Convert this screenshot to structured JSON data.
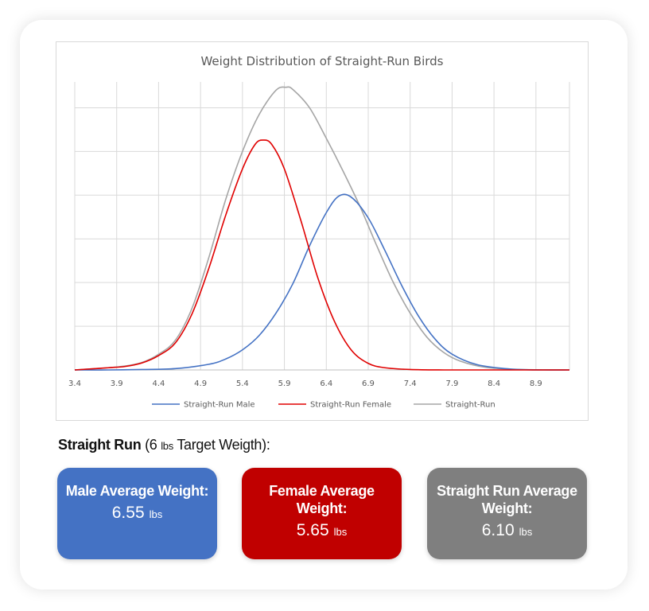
{
  "chart_data": {
    "type": "line",
    "title": "Weight Distribution of Straight-Run Birds",
    "xlabel": "",
    "ylabel": "",
    "xlim": [
      3.4,
      9.3
    ],
    "ylim": [
      0,
      6.5
    ],
    "x_ticks": [
      "3.4",
      "3.9",
      "4.4",
      "4.9",
      "5.4",
      "5.9",
      "6.4",
      "6.9",
      "7.4",
      "7.9",
      "8.4",
      "8.9"
    ],
    "grid": true,
    "legend_position": "bottom",
    "series": [
      {
        "name": "Straight-Run Male",
        "color": "#4472C4",
        "x": [
          3.4,
          3.8,
          4.2,
          4.6,
          5.0,
          5.2,
          5.4,
          5.6,
          5.8,
          6.0,
          6.2,
          6.4,
          6.55,
          6.7,
          6.9,
          7.1,
          7.3,
          7.5,
          7.7,
          7.9,
          8.2,
          8.6,
          9.0,
          9.3
        ],
        "y": [
          0.0,
          0.0,
          0.01,
          0.03,
          0.13,
          0.25,
          0.46,
          0.79,
          1.3,
          1.97,
          2.84,
          3.6,
          3.98,
          3.95,
          3.48,
          2.73,
          1.93,
          1.23,
          0.7,
          0.36,
          0.12,
          0.02,
          0.0,
          0.0
        ]
      },
      {
        "name": "Straight-Run Female",
        "color": "#E00000",
        "x": [
          3.4,
          3.8,
          4.0,
          4.2,
          4.4,
          4.6,
          4.8,
          5.0,
          5.2,
          5.4,
          5.55,
          5.65,
          5.75,
          5.9,
          6.1,
          6.3,
          6.5,
          6.7,
          6.9,
          7.1,
          7.4,
          7.8,
          8.4,
          9.3
        ],
        "y": [
          0.0,
          0.05,
          0.08,
          0.16,
          0.33,
          0.62,
          1.29,
          2.33,
          3.54,
          4.6,
          5.16,
          5.26,
          5.16,
          4.6,
          3.4,
          2.1,
          1.1,
          0.45,
          0.15,
          0.05,
          0.01,
          0.0,
          0.0,
          0.0
        ]
      },
      {
        "name": "Straight-Run",
        "color": "#A5A5A5",
        "x": [
          3.4,
          3.8,
          4.0,
          4.2,
          4.4,
          4.6,
          4.8,
          5.0,
          5.2,
          5.4,
          5.6,
          5.8,
          5.92,
          6.0,
          6.2,
          6.4,
          6.6,
          6.8,
          7.0,
          7.2,
          7.4,
          7.6,
          7.8,
          8.0,
          8.3,
          8.7,
          9.3
        ],
        "y": [
          0.0,
          0.05,
          0.09,
          0.17,
          0.36,
          0.68,
          1.42,
          2.58,
          3.9,
          5.0,
          5.85,
          6.4,
          6.47,
          6.42,
          6.0,
          5.3,
          4.55,
          3.75,
          2.85,
          2.0,
          1.3,
          0.75,
          0.4,
          0.2,
          0.06,
          0.01,
          0.0
        ]
      }
    ]
  },
  "summary": {
    "title_bold": "Straight Run",
    "title_paren_open": " (6 ",
    "title_unit": "lbs",
    "title_rest": " Target Weigth):"
  },
  "stats": [
    {
      "label": "Male Average Weight:",
      "value": "6.55",
      "unit": "lbs",
      "color": "#4472C4"
    },
    {
      "label": "Female Average Weight:",
      "value": "5.65",
      "unit": "lbs",
      "color": "#C00000"
    },
    {
      "label": "Straight Run Average Weight:",
      "value": "6.10",
      "unit": "lbs",
      "color": "#7F7F7F"
    }
  ]
}
